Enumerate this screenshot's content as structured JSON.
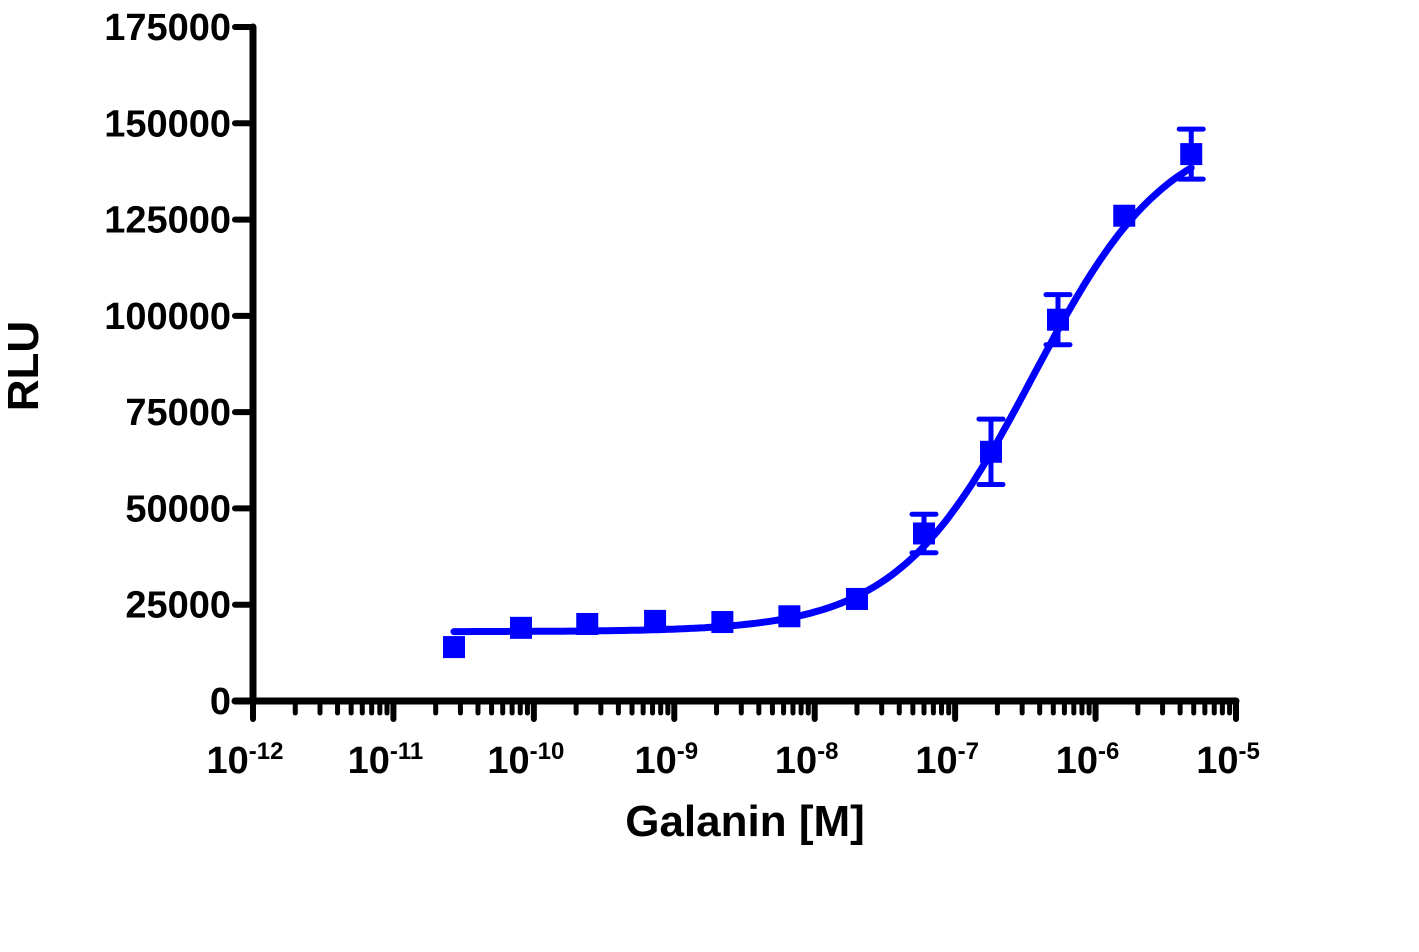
{
  "chart_data": {
    "type": "scatter",
    "title": "",
    "xlabel": "Galanin [M]",
    "ylabel": "RLU",
    "xscale": "log",
    "xlim": [
      1e-12,
      1e-05
    ],
    "ylim": [
      0,
      175000
    ],
    "grid": false,
    "legend": null,
    "x_ticks": [
      {
        "base": "10",
        "exp": "-12",
        "value": 1e-12
      },
      {
        "base": "10",
        "exp": "-11",
        "value": 1e-11
      },
      {
        "base": "10",
        "exp": "-10",
        "value": 1e-10
      },
      {
        "base": "10",
        "exp": "-9",
        "value": 1e-09
      },
      {
        "base": "10",
        "exp": "-8",
        "value": 1e-08
      },
      {
        "base": "10",
        "exp": "-7",
        "value": 1e-07
      },
      {
        "base": "10",
        "exp": "-6",
        "value": 1e-06
      },
      {
        "base": "10",
        "exp": "-5",
        "value": 1e-05
      }
    ],
    "y_ticks": [
      "0",
      "25000",
      "50000",
      "75000",
      "100000",
      "125000",
      "150000",
      "175000"
    ],
    "series": [
      {
        "name": "Galanin",
        "color": "#0000ff",
        "marker": "square",
        "fit": "sigmoidal dose-response",
        "x": [
          2.7e-11,
          8.1e-11,
          2.4e-10,
          7.3e-10,
          2.2e-09,
          6.6e-09,
          2e-08,
          6e-08,
          1.8e-07,
          5.4e-07,
          1.6e-06,
          4.8e-06
        ],
        "y": [
          14000,
          19000,
          20000,
          20800,
          20500,
          22000,
          26500,
          43500,
          64700,
          99000,
          126000,
          142000
        ],
        "error": [
          0,
          0,
          0,
          0,
          0,
          0,
          0,
          5000,
          8500,
          6500,
          0,
          6500
        ]
      }
    ],
    "fit_curve": {
      "bottom": 18000,
      "top": 150000,
      "logEC50": -6.45,
      "hill": 0.9
    }
  }
}
